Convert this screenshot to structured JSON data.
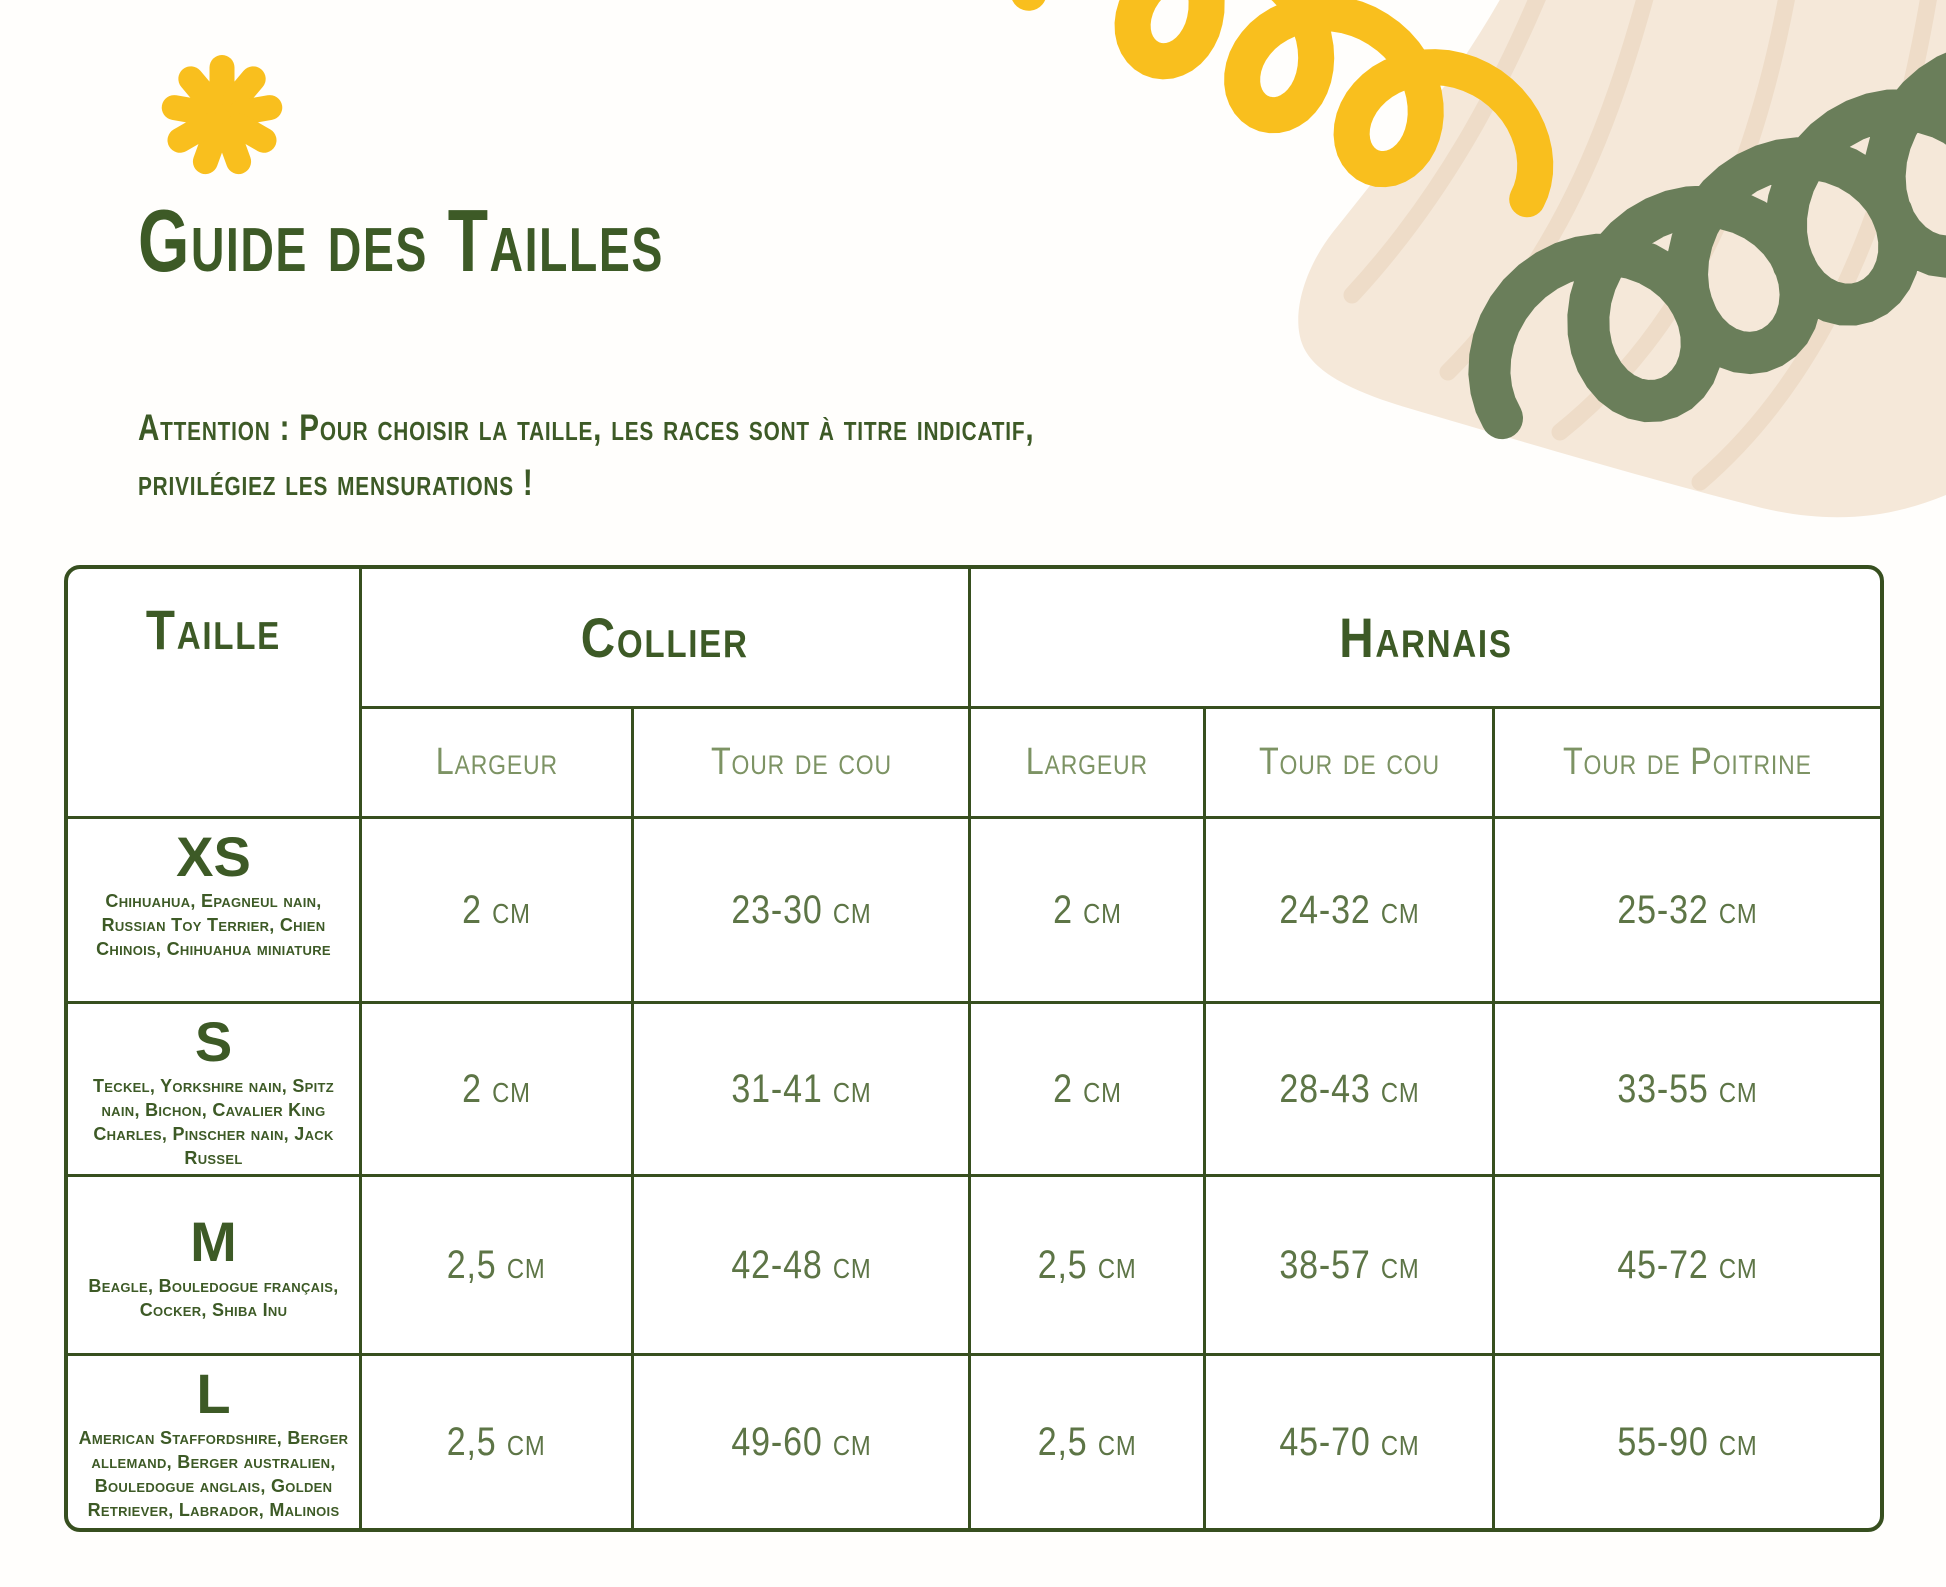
{
  "page": {
    "title": "Guide des Tailles",
    "subtitle_line1": "Attention : Pour choisir la taille, les races sont à titre indicatif,",
    "subtitle_line2": "privilégiez les mensurations !"
  },
  "table": {
    "headers": {
      "taille": "Taille",
      "collier": "Collier",
      "harnais": "Harnais"
    },
    "sub_headers": {
      "collier_largeur": "Largeur",
      "collier_tour_cou": "Tour de cou",
      "harnais_largeur": "Largeur",
      "harnais_tour_cou": "Tour de cou",
      "harnais_tour_poitrine": "Tour de Poitrine"
    },
    "rows": [
      {
        "size": "XS",
        "breeds": "Chihuahua, Epagneul nain, Russian Toy Terrier, Chien Chinois, Chihuahua miniature",
        "collier_largeur": "2 cm",
        "collier_tour_cou": "23-30 cm",
        "harnais_largeur": "2 cm",
        "harnais_tour_cou": "24-32 cm",
        "harnais_tour_poitrine": "25-32 cm"
      },
      {
        "size": "S",
        "breeds": "Teckel, Yorkshire nain, Spitz nain, Bichon, Cavalier King Charles, Pinscher nain, Jack Russel",
        "collier_largeur": "2 cm",
        "collier_tour_cou": "31-41 cm",
        "harnais_largeur": "2 cm",
        "harnais_tour_cou": "28-43 cm",
        "harnais_tour_poitrine": "33-55 cm"
      },
      {
        "size": "M",
        "breeds": "Beagle, Bouledogue français, Cocker, Shiba Inu",
        "collier_largeur": "2,5 cm",
        "collier_tour_cou": "42-48 cm",
        "harnais_largeur": "2,5 cm",
        "harnais_tour_cou": "38-57 cm",
        "harnais_tour_poitrine": "45-72 cm"
      },
      {
        "size": "L",
        "breeds": "American Staffordshire, Berger allemand, Berger australien, Bouledogue anglais, Golden Retriever, Labrador, Malinois",
        "collier_largeur": "2,5 cm",
        "collier_tour_cou": "49-60 cm",
        "harnais_largeur": "2,5 cm",
        "harnais_tour_cou": "45-70 cm",
        "harnais_tour_poitrine": "55-90 cm"
      }
    ]
  },
  "decorations": {
    "dark_green": "#3d5a26",
    "value_green": "#5d7546",
    "sage_green": "#7d9364",
    "border_green": "#374f1f",
    "yellow": "#f9bf1e",
    "coil_green": "#6a7e5a",
    "blob_beige": "#f5e8d9",
    "blob_stripe": "#eedcc8"
  }
}
